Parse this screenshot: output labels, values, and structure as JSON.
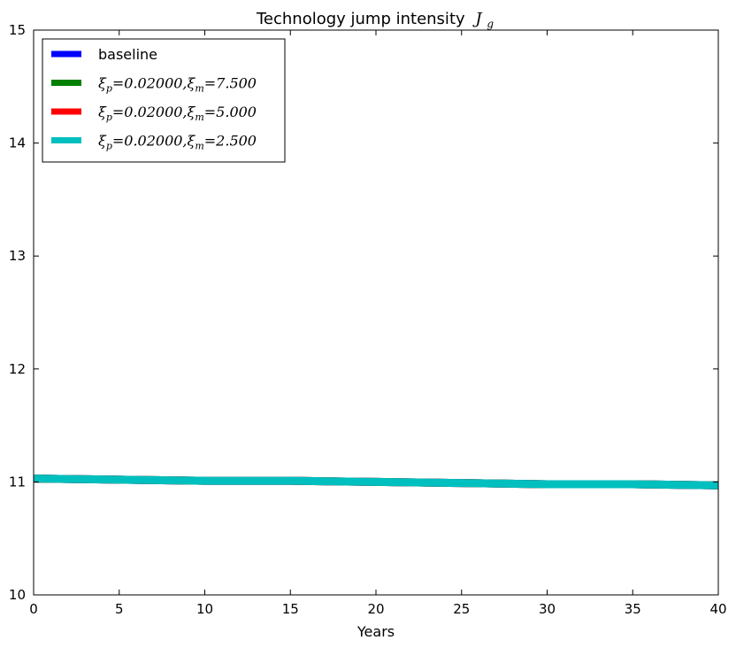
{
  "chart_data": {
    "type": "line",
    "title": "Technology jump intensity",
    "title_math": "J",
    "title_math_sub": "g",
    "xlabel": "Years",
    "ylabel": "",
    "xlim": [
      0,
      40
    ],
    "ylim": [
      10,
      15
    ],
    "xticks": [
      "0",
      "5",
      "10",
      "15",
      "20",
      "25",
      "30",
      "35",
      "40"
    ],
    "yticks": [
      "10",
      "11",
      "12",
      "13",
      "14",
      "15"
    ],
    "grid": false,
    "legend_position": "top-left",
    "x": [
      0,
      5,
      10,
      15,
      20,
      25,
      30,
      35,
      40
    ],
    "series": [
      {
        "name": "baseline",
        "color": "#0000ff",
        "values": [
          11.03,
          11.02,
          11.01,
          11.01,
          11.0,
          10.99,
          10.98,
          10.98,
          10.97
        ]
      },
      {
        "name": "ξp=0.02000,ξm=7.500",
        "label_parts": [
          "ξ",
          "p",
          "=0.02000,ξ",
          "m",
          "=7.500"
        ],
        "color": "#008000",
        "values": [
          11.03,
          11.02,
          11.01,
          11.01,
          11.0,
          10.99,
          10.98,
          10.98,
          10.97
        ]
      },
      {
        "name": "ξp=0.02000,ξm=5.000",
        "label_parts": [
          "ξ",
          "p",
          "=0.02000,ξ",
          "m",
          "=5.000"
        ],
        "color": "#ff0000",
        "values": [
          11.03,
          11.02,
          11.01,
          11.01,
          11.0,
          10.99,
          10.98,
          10.98,
          10.97
        ]
      },
      {
        "name": "ξp=0.02000,ξm=2.500",
        "label_parts": [
          "ξ",
          "p",
          "=0.02000,ξ",
          "m",
          "=2.500"
        ],
        "color": "#00bfbf",
        "values": [
          11.03,
          11.02,
          11.01,
          11.01,
          11.0,
          10.99,
          10.98,
          10.98,
          10.97
        ]
      }
    ]
  }
}
